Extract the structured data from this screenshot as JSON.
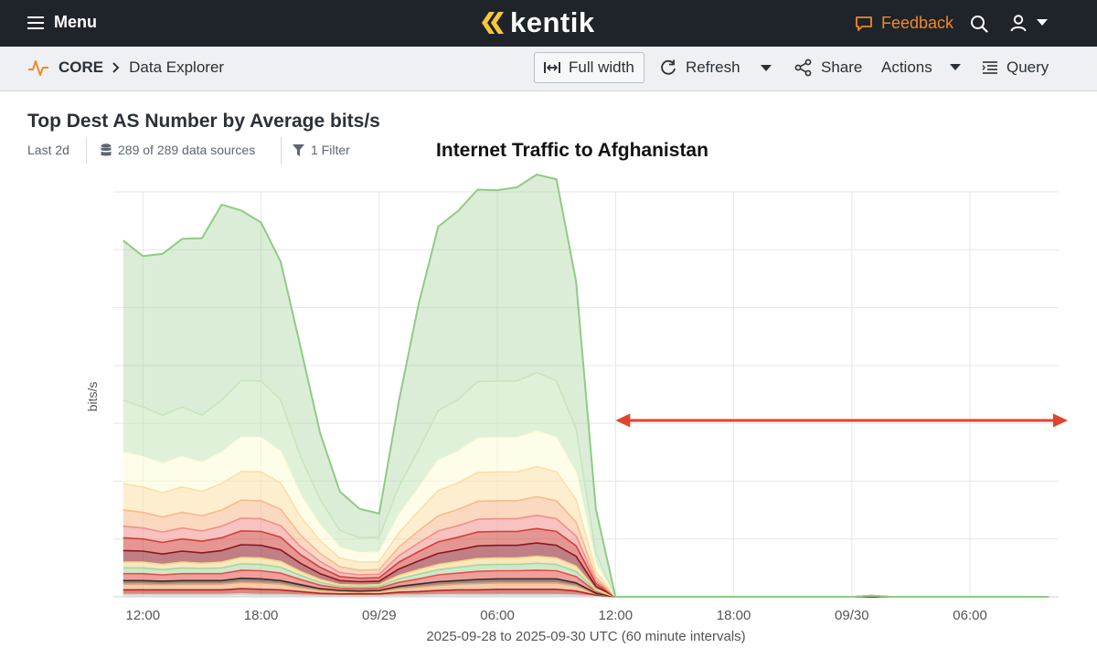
{
  "topbar": {
    "menu_label": "Menu",
    "logo_text": "kentik",
    "feedback_label": "Feedback",
    "accent_color": "#f08a24"
  },
  "subbar": {
    "section": "CORE",
    "page": "Data Explorer",
    "full_width_label": "Full width",
    "refresh_label": "Refresh",
    "share_label": "Share",
    "actions_label": "Actions",
    "query_label": "Query"
  },
  "query": {
    "title": "Top Dest AS Number by Average bits/s",
    "time_range": "Last 2d",
    "data_sources": "289 of 289 data sources",
    "filters": "1 Filter"
  },
  "chart_data": {
    "type": "area",
    "stacked": true,
    "title": "Internet Traffic to Afghanistan",
    "ylabel": "bits/s",
    "xlabel": "2025-09-28 to 2025-09-30 UTC (60 minute intervals)",
    "x_start": "2025-09-28 11:00",
    "x_step_minutes": 60,
    "x_ticks": [
      {
        "x": 1,
        "label": "12:00"
      },
      {
        "x": 7,
        "label": "18:00"
      },
      {
        "x": 13,
        "label": "09/29"
      },
      {
        "x": 19,
        "label": "06:00"
      },
      {
        "x": 25,
        "label": "12:00"
      },
      {
        "x": 31,
        "label": "18:00"
      },
      {
        "x": 37,
        "label": "09/30"
      },
      {
        "x": 43,
        "label": "06:00"
      }
    ],
    "x_range": [
      -0.5,
      47.5
    ],
    "ylim": [
      0,
      7
    ],
    "y_grid": [
      1,
      2,
      3,
      4,
      5,
      6,
      7
    ],
    "y_tick_labels_visible": false,
    "grid": true,
    "annotation": {
      "type": "arrow",
      "from_x": 25,
      "to_x": 47.5,
      "y": 3.05,
      "color": "#e0442c"
    },
    "series": [
      {
        "color": "#d3d3cd",
        "values": [
          0.04,
          0.04,
          0.04,
          0.04,
          0.04,
          0.04,
          0.05,
          0.04,
          0.04,
          0.03,
          0.02,
          0.02,
          0.02,
          0.02,
          0.03,
          0.03,
          0.04,
          0.04,
          0.04,
          0.04,
          0.04,
          0.04,
          0.04,
          0.03,
          0.01,
          0,
          0,
          0,
          0,
          0,
          0,
          0,
          0,
          0,
          0,
          0,
          0,
          0,
          0,
          0,
          0,
          0,
          0,
          0,
          0,
          0,
          0,
          0
        ]
      },
      {
        "color": "#b7261f",
        "values": [
          0.08,
          0.08,
          0.08,
          0.08,
          0.08,
          0.08,
          0.09,
          0.09,
          0.08,
          0.06,
          0.04,
          0.03,
          0.03,
          0.03,
          0.05,
          0.06,
          0.07,
          0.08,
          0.08,
          0.09,
          0.09,
          0.09,
          0.09,
          0.07,
          0.02,
          0,
          0,
          0,
          0,
          0,
          0,
          0,
          0,
          0,
          0,
          0,
          0,
          0,
          0,
          0,
          0,
          0,
          0,
          0,
          0,
          0,
          0,
          0
        ]
      },
      {
        "color": "#e9a16a",
        "values": [
          0.1,
          0.1,
          0.09,
          0.1,
          0.1,
          0.1,
          0.11,
          0.11,
          0.1,
          0.07,
          0.05,
          0.04,
          0.03,
          0.04,
          0.06,
          0.08,
          0.09,
          0.1,
          0.11,
          0.11,
          0.11,
          0.11,
          0.11,
          0.09,
          0.02,
          0,
          0,
          0,
          0,
          0,
          0,
          0,
          0,
          0,
          0,
          0,
          0,
          0,
          0,
          0,
          0,
          0,
          0,
          0,
          0,
          0,
          0,
          0
        ]
      },
      {
        "color": "#3e2a26",
        "values": [
          0.06,
          0.06,
          0.06,
          0.06,
          0.06,
          0.06,
          0.07,
          0.07,
          0.06,
          0.05,
          0.03,
          0.02,
          0.02,
          0.02,
          0.04,
          0.05,
          0.06,
          0.06,
          0.07,
          0.07,
          0.07,
          0.07,
          0.07,
          0.05,
          0.01,
          0,
          0,
          0,
          0,
          0,
          0,
          0,
          0,
          0,
          0,
          0,
          0,
          0,
          0,
          0,
          0,
          0,
          0,
          0,
          0,
          0,
          0,
          0
        ]
      },
      {
        "color": "#e2504a",
        "values": [
          0.12,
          0.12,
          0.11,
          0.12,
          0.12,
          0.12,
          0.14,
          0.14,
          0.13,
          0.09,
          0.06,
          0.04,
          0.04,
          0.04,
          0.07,
          0.09,
          0.12,
          0.13,
          0.14,
          0.14,
          0.14,
          0.15,
          0.14,
          0.11,
          0.03,
          0,
          0,
          0,
          0,
          0,
          0,
          0,
          0,
          0,
          0,
          0,
          0,
          0,
          0.02,
          0,
          0,
          0,
          0,
          0,
          0,
          0,
          0,
          0
        ]
      },
      {
        "color": "#a8d59e",
        "values": [
          0.1,
          0.1,
          0.09,
          0.1,
          0.09,
          0.1,
          0.11,
          0.11,
          0.1,
          0.07,
          0.05,
          0.03,
          0.03,
          0.03,
          0.06,
          0.08,
          0.09,
          0.1,
          0.11,
          0.11,
          0.11,
          0.12,
          0.11,
          0.09,
          0.02,
          0,
          0,
          0,
          0,
          0,
          0,
          0,
          0,
          0,
          0,
          0,
          0,
          0,
          0,
          0,
          0,
          0,
          0,
          0,
          0,
          0,
          0,
          0
        ]
      },
      {
        "color": "#f2d688",
        "values": [
          0.1,
          0.1,
          0.09,
          0.1,
          0.09,
          0.1,
          0.11,
          0.11,
          0.1,
          0.07,
          0.05,
          0.03,
          0.03,
          0.03,
          0.06,
          0.08,
          0.09,
          0.1,
          0.11,
          0.11,
          0.11,
          0.12,
          0.11,
          0.09,
          0.02,
          0,
          0,
          0,
          0,
          0,
          0,
          0,
          0,
          0,
          0,
          0,
          0,
          0,
          0,
          0,
          0,
          0,
          0,
          0,
          0,
          0,
          0,
          0
        ]
      },
      {
        "color": "#8c1520",
        "values": [
          0.2,
          0.19,
          0.18,
          0.19,
          0.18,
          0.2,
          0.22,
          0.22,
          0.2,
          0.14,
          0.1,
          0.07,
          0.06,
          0.06,
          0.11,
          0.15,
          0.19,
          0.2,
          0.22,
          0.22,
          0.22,
          0.23,
          0.22,
          0.17,
          0.05,
          0,
          0,
          0,
          0,
          0,
          0,
          0,
          0,
          0,
          0,
          0,
          0,
          0,
          0,
          0,
          0,
          0,
          0,
          0,
          0,
          0,
          0,
          0
        ]
      },
      {
        "color": "#d0403a",
        "values": [
          0.22,
          0.21,
          0.2,
          0.21,
          0.2,
          0.22,
          0.24,
          0.24,
          0.22,
          0.15,
          0.11,
          0.07,
          0.06,
          0.06,
          0.12,
          0.16,
          0.2,
          0.22,
          0.24,
          0.24,
          0.24,
          0.25,
          0.24,
          0.18,
          0.05,
          0,
          0,
          0,
          0,
          0,
          0,
          0,
          0,
          0,
          0,
          0,
          0,
          0,
          0,
          0,
          0,
          0,
          0,
          0,
          0,
          0,
          0,
          0
        ]
      },
      {
        "color": "#f0908a",
        "values": [
          0.2,
          0.19,
          0.18,
          0.19,
          0.18,
          0.2,
          0.22,
          0.22,
          0.2,
          0.14,
          0.1,
          0.07,
          0.06,
          0.06,
          0.11,
          0.15,
          0.19,
          0.2,
          0.22,
          0.22,
          0.22,
          0.23,
          0.22,
          0.17,
          0.05,
          0,
          0,
          0,
          0,
          0,
          0,
          0,
          0,
          0,
          0,
          0,
          0,
          0,
          0,
          0,
          0,
          0,
          0,
          0,
          0,
          0,
          0,
          0
        ]
      },
      {
        "color": "#f7b98e",
        "values": [
          0.28,
          0.27,
          0.26,
          0.27,
          0.26,
          0.28,
          0.31,
          0.31,
          0.28,
          0.2,
          0.14,
          0.1,
          0.08,
          0.08,
          0.15,
          0.21,
          0.26,
          0.28,
          0.31,
          0.31,
          0.31,
          0.32,
          0.31,
          0.24,
          0.06,
          0,
          0,
          0,
          0,
          0,
          0,
          0,
          0,
          0,
          0,
          0,
          0,
          0,
          0,
          0,
          0,
          0,
          0,
          0,
          0,
          0,
          0,
          0
        ]
      },
      {
        "color": "#fbe0a8",
        "values": [
          0.46,
          0.44,
          0.42,
          0.44,
          0.42,
          0.46,
          0.5,
          0.5,
          0.46,
          0.32,
          0.22,
          0.15,
          0.14,
          0.14,
          0.25,
          0.34,
          0.44,
          0.46,
          0.5,
          0.5,
          0.5,
          0.52,
          0.5,
          0.39,
          0.1,
          0,
          0,
          0,
          0,
          0,
          0,
          0,
          0,
          0,
          0,
          0,
          0,
          0,
          0,
          0,
          0,
          0,
          0,
          0,
          0,
          0,
          0,
          0
        ]
      },
      {
        "color": "#fefbd8",
        "values": [
          0.54,
          0.52,
          0.5,
          0.52,
          0.5,
          0.54,
          0.59,
          0.59,
          0.54,
          0.38,
          0.27,
          0.18,
          0.16,
          0.16,
          0.3,
          0.4,
          0.52,
          0.54,
          0.59,
          0.59,
          0.59,
          0.61,
          0.59,
          0.46,
          0.12,
          0,
          0,
          0,
          0,
          0,
          0,
          0,
          0,
          0,
          0,
          0,
          0,
          0,
          0,
          0,
          0,
          0,
          0,
          0,
          0,
          0,
          0,
          0
        ]
      },
      {
        "color": "#c7e6bc",
        "values": [
          0.9,
          0.86,
          0.84,
          0.86,
          0.82,
          0.9,
          0.98,
          0.98,
          0.89,
          0.66,
          0.44,
          0.3,
          0.26,
          0.26,
          0.5,
          0.66,
          0.86,
          0.9,
          0.98,
          0.98,
          0.98,
          1.02,
          0.98,
          0.76,
          0.19,
          0,
          0,
          0,
          0,
          0,
          0,
          0,
          0,
          0,
          0,
          0,
          0,
          0,
          0,
          0,
          0,
          0,
          0,
          0,
          0,
          0,
          0,
          0
        ]
      },
      {
        "color": "#a7d39a",
        "values": [
          2.76,
          2.61,
          2.79,
          2.91,
          3.06,
          3.38,
          2.94,
          2.74,
          2.39,
          1.9,
          1.15,
          0.67,
          0.5,
          0.41,
          1.48,
          2.52,
          3.18,
          3.26,
          3.32,
          3.3,
          3.35,
          3.42,
          3.49,
          2.55,
          0.77,
          0,
          0,
          0,
          0,
          0,
          0,
          0,
          0,
          0,
          0,
          0,
          0,
          0,
          0,
          0,
          0,
          0,
          0,
          0,
          0,
          0,
          0,
          0
        ]
      }
    ]
  }
}
